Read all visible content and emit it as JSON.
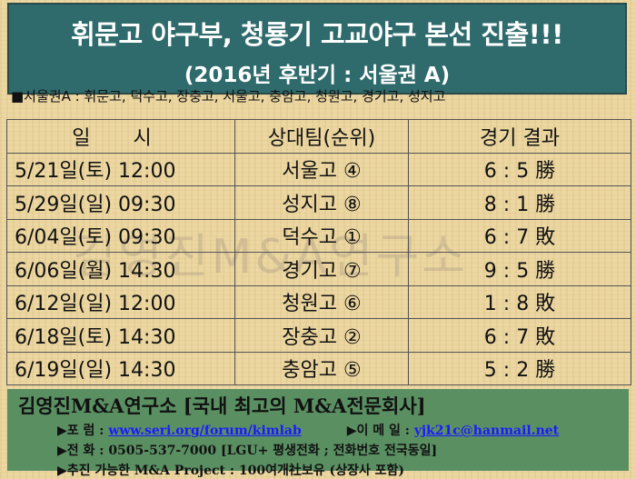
{
  "header": {
    "title": "휘문고 야구부, 청룡기 고교야구 본선 진출!!!",
    "subtitle": "(2016년 후반기 : 서울권 A)"
  },
  "league": "■서울권A : 휘문고, 덕수고, 장충고, 서울고, 충암고, 청원고, 경기고, 성지고",
  "table": {
    "headers": [
      "일 시",
      "상대팀(순위)",
      "경기 결과"
    ],
    "rows": [
      {
        "date": "5/21일(토) 12:00",
        "opponent": "서울고 ④",
        "result": "6 : 5 勝"
      },
      {
        "date": "5/29일(일) 09:30",
        "opponent": "성지고 ⑧",
        "result": "8 : 1 勝"
      },
      {
        "date": "6/04일(토) 09:30",
        "opponent": "덕수고 ①",
        "result": "6 : 7 敗"
      },
      {
        "date": "6/06일(월) 14:30",
        "opponent": "경기고 ⑦",
        "result": "9 : 5 勝"
      },
      {
        "date": "6/12일(일) 12:00",
        "opponent": "청원고 ⑥",
        "result": "1 : 8 敗"
      },
      {
        "date": "6/18일(토) 14:30",
        "opponent": "장충고 ②",
        "result": "6 : 7 敗"
      },
      {
        "date": "6/19일(일) 14:30",
        "opponent": "충암고 ⑤",
        "result": "5 : 2 勝"
      }
    ]
  },
  "watermark": "김영진M&A연구소",
  "footer": {
    "title": "김영진M&A연구소 [국내 최고의 M&A전문회사]",
    "forum_label": "▶포 럼 : ",
    "forum_link": "www.seri.org/forum/kimlab",
    "email_label": "▶이 메 일 : ",
    "email_link": "yjk21c@hanmail.net",
    "phone": "▶전 화 : 0505-537-7000 [LGU+ 평생전화 ; 전화번호 전국동일]",
    "project": "▶추진 가능한 M&A Project : 100여개社보유 (상장사 포함)"
  },
  "colors": {
    "title_bg": "#2f6b6c",
    "footer_bg": "#5a8f62",
    "link": "#1a1aff"
  }
}
